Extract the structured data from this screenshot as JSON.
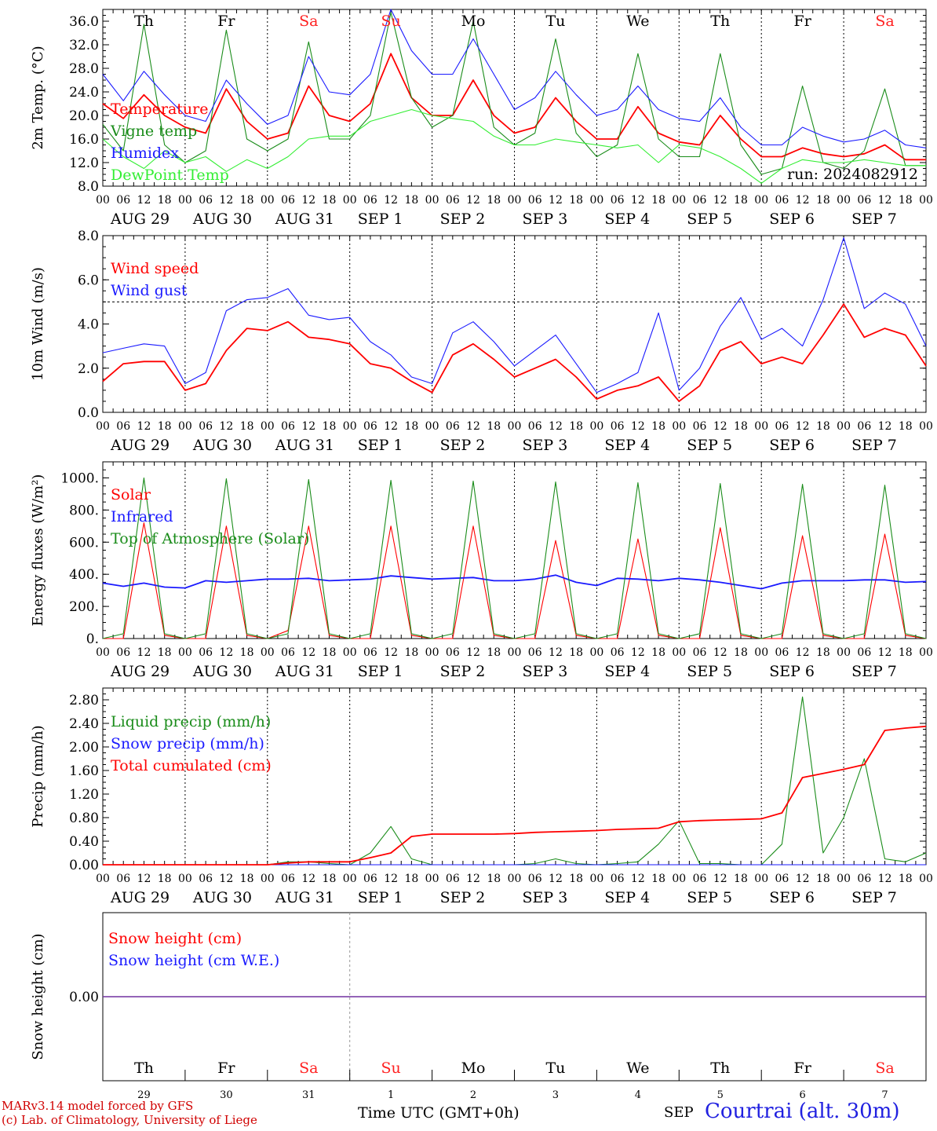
{
  "footer": {
    "model_line": "MARv3.14 model forced by GFS",
    "copyright_line": "(c) Lab. of Climatology, University of Liege",
    "time_label": "Time UTC (GMT+0h)",
    "month_label": "SEP",
    "station": "Courtrai (alt. 30m)"
  },
  "run_label": "run: 2024082912",
  "days": {
    "weekday": [
      "Th",
      "Fr",
      "Sa",
      "Su",
      "Mo",
      "Tu",
      "We",
      "Th",
      "Fr",
      "Sa"
    ],
    "weekend": [
      false,
      false,
      true,
      true,
      false,
      false,
      false,
      false,
      false,
      true
    ],
    "date_labels": [
      "AUG 29",
      "AUG 30",
      "AUG 31",
      "SEP  1",
      "SEP  2",
      "SEP  3",
      "SEP  4",
      "SEP  5",
      "SEP  6",
      "SEP  7"
    ],
    "day_numbers": [
      "29",
      "30",
      "31",
      "1",
      "2",
      "3",
      "4",
      "5",
      "6",
      "7"
    ],
    "hour_labels": [
      "00",
      "06",
      "12",
      "18"
    ],
    "end_hour_label": "00"
  },
  "colors": {
    "red": "#ff0000",
    "green": "#1a8c1a",
    "blue": "#1a1aff",
    "light_green": "#33ee33",
    "weekend": "#ff2020",
    "purple": "#7030a0"
  },
  "chart_data": [
    {
      "type": "line",
      "ylabel": "2m Temp. (°C)",
      "ylim": [
        8.0,
        38.0
      ],
      "yticks": [
        "8.0",
        "12.0",
        "16.0",
        "20.0",
        "24.0",
        "28.0",
        "32.0",
        "36.0"
      ],
      "x_unit": "hours since 2024-08-29 00 UTC, every 6 h",
      "series": [
        {
          "name": "Temperature",
          "color": "red",
          "values": [
            22,
            19.5,
            23.5,
            20,
            18,
            17,
            24.5,
            19,
            16,
            17,
            25,
            20,
            19,
            22,
            30.5,
            23,
            20,
            20,
            26,
            20,
            17,
            18,
            23,
            19,
            16,
            16,
            21.5,
            17,
            15.5,
            15,
            20,
            16,
            13,
            13,
            14.5,
            13.5,
            13,
            13.5,
            15,
            12.5,
            12.5
          ]
        },
        {
          "name": "Vigne temp",
          "color": "green",
          "values": [
            18.5,
            14,
            35.5,
            15,
            12,
            14,
            34.5,
            16,
            14,
            16,
            32.5,
            16,
            16,
            20,
            37.5,
            23,
            18,
            20,
            36,
            18,
            15,
            17,
            33,
            17,
            13,
            15,
            30.5,
            16,
            13,
            13,
            30.5,
            15,
            10,
            11,
            25,
            12,
            11,
            14,
            24.5,
            11.5,
            11.5
          ]
        },
        {
          "name": "Humidex",
          "color": "blue",
          "values": [
            27,
            22.5,
            27.5,
            23.5,
            20,
            19,
            26,
            22,
            18.5,
            20,
            30,
            24,
            23.5,
            27,
            38,
            31,
            27,
            27,
            33,
            27,
            21,
            23,
            27.5,
            23.5,
            20,
            21,
            25,
            21,
            19.5,
            19,
            23,
            18,
            15,
            15,
            18,
            16.5,
            15.5,
            16,
            17.5,
            15,
            14.5
          ]
        },
        {
          "name": "DewPoint Temp",
          "color": "light_green",
          "values": [
            16,
            13,
            11,
            14,
            12,
            13,
            10.5,
            12.5,
            11,
            13,
            16,
            16.5,
            16.5,
            19,
            20,
            21,
            20,
            19.5,
            19,
            16.5,
            15,
            15,
            16,
            15.5,
            15,
            14.5,
            15,
            12,
            15,
            14.5,
            13,
            11,
            8.5,
            11,
            12.5,
            12,
            12,
            12.5,
            12,
            11.5,
            11.5
          ]
        }
      ]
    },
    {
      "type": "line",
      "ylabel": "10m Wind (m/s)",
      "ylim": [
        0.0,
        8.0
      ],
      "yticks": [
        "0.0",
        "2.0",
        "4.0",
        "6.0",
        "8.0"
      ],
      "reference_line": 5.0,
      "series": [
        {
          "name": "Wind speed",
          "color": "red",
          "values": [
            1.4,
            2.2,
            2.3,
            2.3,
            1.0,
            1.3,
            2.8,
            3.8,
            3.7,
            4.1,
            3.4,
            3.3,
            3.1,
            2.2,
            2.0,
            1.4,
            0.9,
            2.6,
            3.1,
            2.4,
            1.6,
            2.0,
            2.4,
            1.6,
            0.6,
            1.0,
            1.2,
            1.6,
            0.5,
            1.2,
            2.8,
            3.2,
            2.2,
            2.5,
            2.2,
            3.5,
            4.9,
            3.4,
            3.8,
            3.5,
            2.1
          ]
        },
        {
          "name": "Wind gust",
          "color": "blue",
          "values": [
            2.7,
            2.9,
            3.1,
            3.0,
            1.3,
            1.8,
            4.6,
            5.1,
            5.2,
            5.6,
            4.4,
            4.2,
            4.3,
            3.2,
            2.6,
            1.6,
            1.3,
            3.6,
            4.1,
            3.2,
            2.1,
            2.8,
            3.5,
            2.2,
            0.9,
            1.3,
            1.8,
            4.5,
            1.0,
            2.0,
            3.9,
            5.2,
            3.3,
            3.8,
            3.0,
            5.1,
            7.9,
            4.7,
            5.4,
            4.9,
            3.0
          ]
        }
      ]
    },
    {
      "type": "line",
      "ylabel": "Energy fluxes (W/m²)",
      "ylim": [
        0,
        1100
      ],
      "yticks": [
        "0.",
        "200.",
        "400.",
        "600.",
        "800.",
        "1000."
      ],
      "series": [
        {
          "name": "Solar",
          "color": "red",
          "values": [
            0,
            0,
            720,
            20,
            0,
            0,
            700,
            20,
            0,
            50,
            700,
            20,
            0,
            0,
            700,
            20,
            0,
            0,
            700,
            20,
            0,
            0,
            610,
            20,
            0,
            0,
            620,
            20,
            0,
            0,
            690,
            20,
            0,
            0,
            640,
            20,
            0,
            0,
            650,
            20,
            0
          ]
        },
        {
          "name": "Infrared",
          "color": "blue",
          "values": [
            345,
            325,
            345,
            320,
            315,
            360,
            350,
            360,
            370,
            370,
            375,
            360,
            365,
            370,
            390,
            380,
            370,
            375,
            380,
            360,
            360,
            370,
            395,
            350,
            330,
            375,
            370,
            360,
            375,
            365,
            350,
            330,
            310,
            345,
            360,
            360,
            360,
            365,
            365,
            350,
            355
          ]
        },
        {
          "name": "Top of Atmosphere (Solar)",
          "color": "green",
          "values": [
            0,
            30,
            1000,
            30,
            0,
            30,
            995,
            30,
            0,
            30,
            990,
            30,
            0,
            30,
            985,
            30,
            0,
            30,
            980,
            30,
            0,
            30,
            975,
            30,
            0,
            30,
            970,
            30,
            0,
            30,
            965,
            30,
            0,
            30,
            960,
            30,
            0,
            30,
            955,
            30,
            0
          ]
        }
      ]
    },
    {
      "type": "line",
      "ylabel": "Precip (mm/h)",
      "ylim": [
        0.0,
        3.0
      ],
      "yticks": [
        "0.00",
        "0.40",
        "0.80",
        "1.20",
        "1.60",
        "2.00",
        "2.40",
        "2.80"
      ],
      "series": [
        {
          "name": "Liquid precip (mm/h)",
          "color": "green",
          "values": [
            0,
            0,
            0,
            0,
            0,
            0,
            0,
            0,
            0,
            0.05,
            0.05,
            0.02,
            0,
            0.2,
            0.65,
            0.1,
            0,
            0,
            0,
            0,
            0,
            0.02,
            0.1,
            0.02,
            0,
            0.02,
            0.05,
            0.35,
            0.75,
            0.02,
            0.02,
            0,
            0,
            0.35,
            2.85,
            0.2,
            0.8,
            1.8,
            0.1,
            0.05,
            0.2
          ]
        },
        {
          "name": "Snow precip (mm/h)",
          "color": "blue",
          "values": [
            0,
            0,
            0,
            0,
            0,
            0,
            0,
            0,
            0,
            0,
            0,
            0,
            0,
            0,
            0,
            0,
            0,
            0,
            0,
            0,
            0,
            0,
            0,
            0,
            0,
            0,
            0,
            0,
            0,
            0,
            0,
            0,
            0,
            0,
            0,
            0,
            0,
            0,
            0,
            0,
            0
          ]
        },
        {
          "name": "Total cumulated (cm)",
          "color": "red",
          "values": [
            0,
            0,
            0,
            0,
            0,
            0,
            0,
            0,
            0,
            0.03,
            0.05,
            0.05,
            0.05,
            0.12,
            0.2,
            0.48,
            0.52,
            0.52,
            0.52,
            0.52,
            0.53,
            0.55,
            0.56,
            0.57,
            0.58,
            0.6,
            0.61,
            0.62,
            0.73,
            0.75,
            0.76,
            0.77,
            0.78,
            0.88,
            1.48,
            1.55,
            1.62,
            1.7,
            2.28,
            2.32,
            2.35
          ]
        }
      ]
    },
    {
      "type": "line",
      "ylabel": "Snow height (cm)",
      "yticks": [
        "0.00"
      ],
      "series": [
        {
          "name": "Snow height (cm)",
          "color": "red",
          "values": [
            0,
            0
          ]
        },
        {
          "name": "Snow height (cm W.E.)",
          "color": "blue",
          "values": [
            0,
            0
          ]
        }
      ]
    }
  ]
}
